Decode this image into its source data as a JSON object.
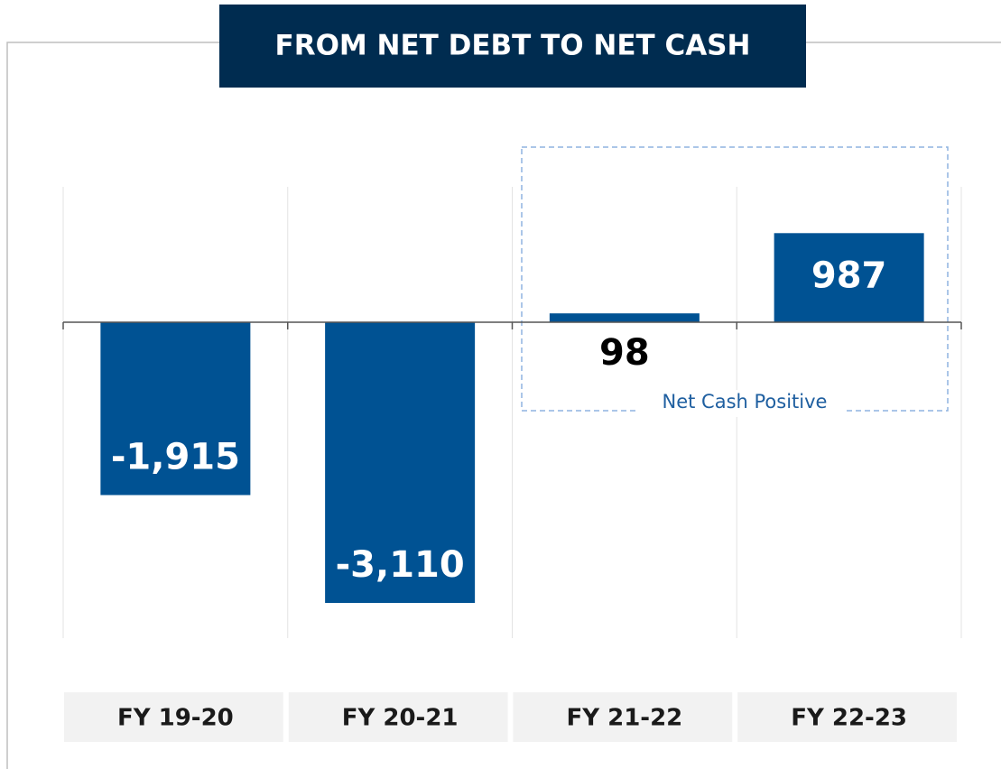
{
  "chart_data": {
    "type": "bar",
    "title": "FROM NET DEBT TO NET CASH",
    "categories": [
      "FY 19-20",
      "FY 20-21",
      "FY 21-22",
      "FY 22-23"
    ],
    "values": [
      -1915,
      -3110,
      98,
      987
    ],
    "value_labels": [
      "-1,915",
      "-3,110",
      "98",
      "987"
    ],
    "color": "#005293",
    "ylim": [
      -3500,
      1500
    ],
    "annotation": "Net Cash Positive"
  }
}
